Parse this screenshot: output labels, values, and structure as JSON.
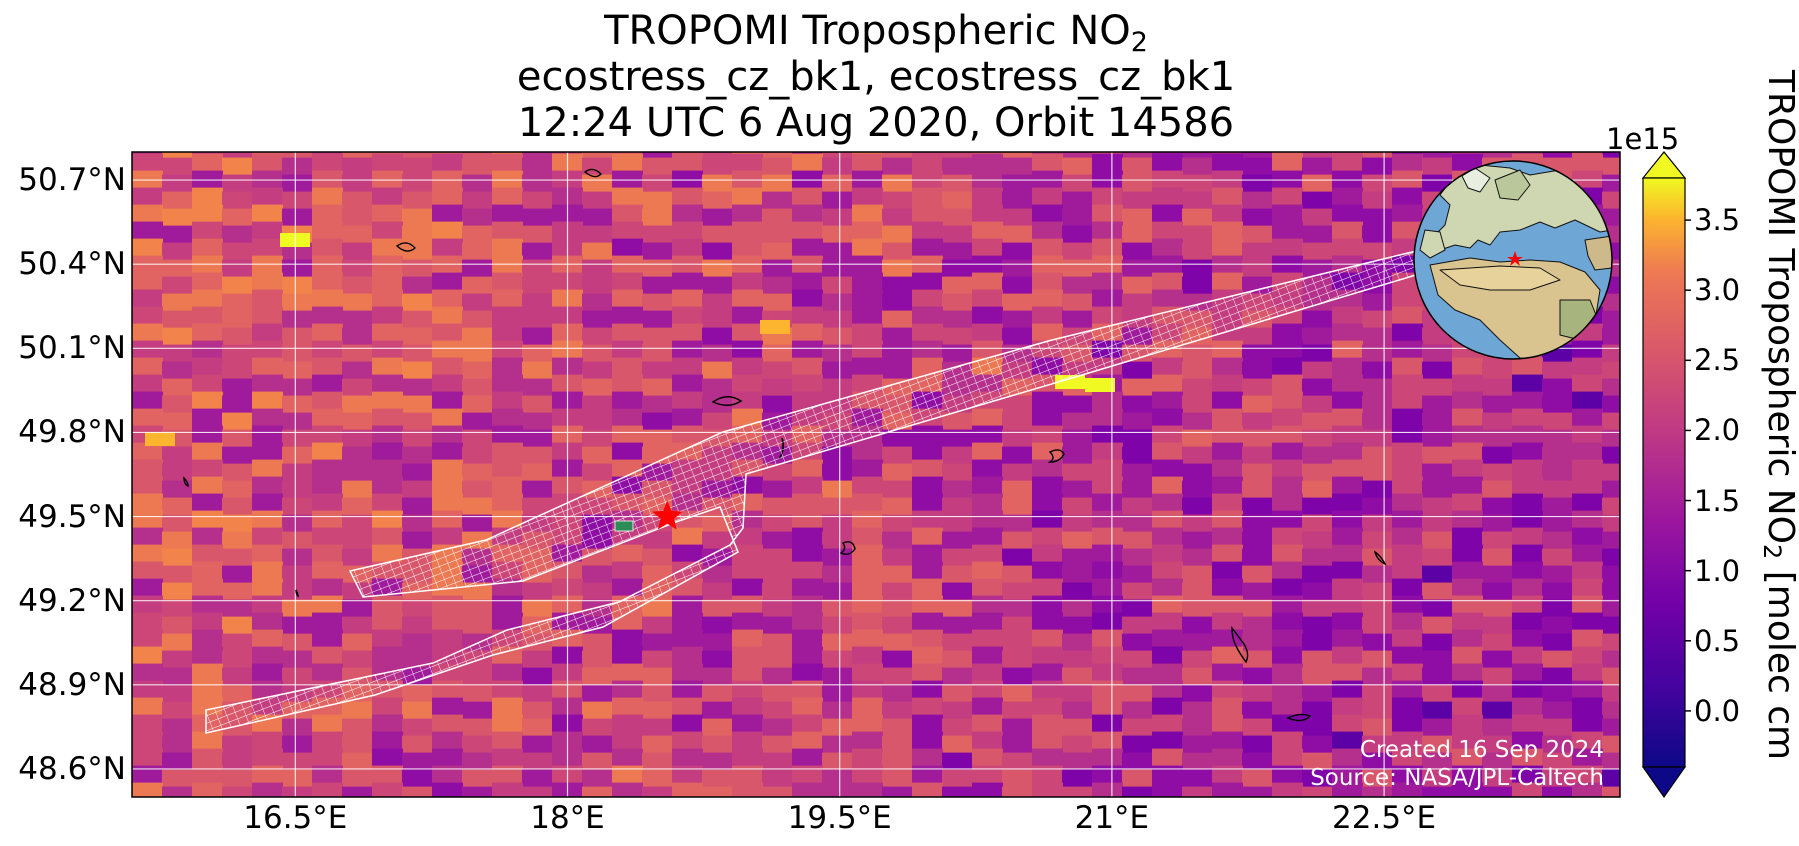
{
  "title": {
    "line1": "TROPOMI Tropospheric NO",
    "line1_sub": "2",
    "line2": "ecostress_cz_bk1, ecostress_cz_bk1",
    "line3": "12:24 UTC 6 Aug 2020, Orbit 14586"
  },
  "axes": {
    "lat_ticks": [
      "50.7°N",
      "50.4°N",
      "50.1°N",
      "49.8°N",
      "49.5°N",
      "49.2°N",
      "48.9°N",
      "48.6°N"
    ],
    "lon_ticks": [
      "16.5°E",
      "18°E",
      "19.5°E",
      "21°E",
      "22.5°E"
    ],
    "lat_values": [
      50.7,
      50.4,
      50.1,
      49.8,
      49.5,
      49.2,
      48.9,
      48.6
    ],
    "lon_values": [
      16.5,
      18.0,
      19.5,
      21.0,
      22.5
    ],
    "lat_range": [
      48.5,
      50.8
    ],
    "lon_range": [
      15.6,
      23.8
    ]
  },
  "colorbar": {
    "exponent": "1e15",
    "label": "TROPOMI Tropospheric NO",
    "label_sub": "2",
    "label_suffix": " [molec cm",
    "ticks": [
      "3.5",
      "3.0",
      "2.5",
      "2.0",
      "1.5",
      "1.0",
      "0.5",
      "0.0"
    ],
    "tick_values": [
      3.5,
      3.0,
      2.5,
      2.0,
      1.5,
      1.0,
      0.5,
      0.0
    ],
    "range": [
      -0.4,
      3.8
    ],
    "colormap": "plasma",
    "extend": "both"
  },
  "marker": {
    "name": "site-star",
    "lon": 18.55,
    "lat": 49.5,
    "color": "#ff0000"
  },
  "inset": {
    "type": "orthographic-globe",
    "marker_color": "#ff0000",
    "ocean_color": "#6ea6d6"
  },
  "credits": {
    "created": "Created 16 Sep 2024",
    "source": "Source: NASA/JPL-Caltech"
  },
  "colors": {
    "grid": "#ffffff",
    "footprint_outline": "#ffffff",
    "coastline": "#000000"
  }
}
